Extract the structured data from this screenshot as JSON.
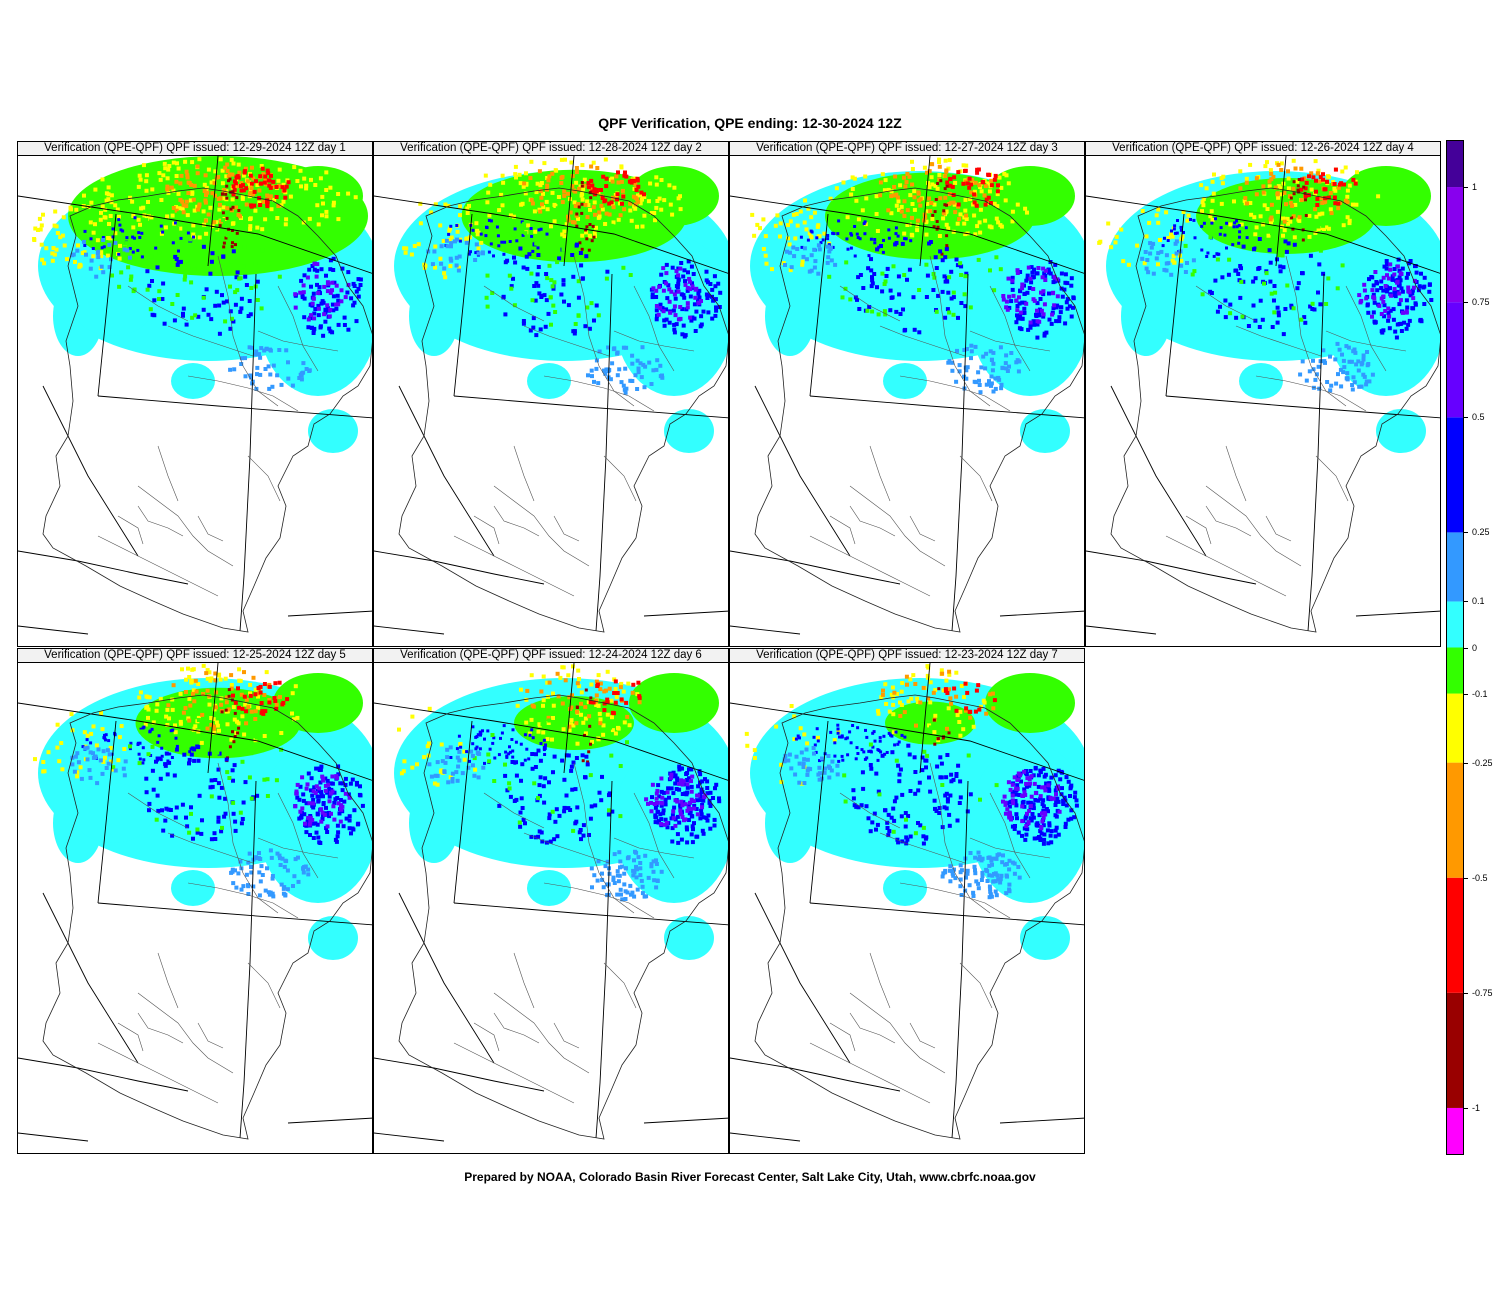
{
  "title": "QPF Verification, QPE ending: 12-30-2024 12Z",
  "footer": "Prepared by NOAA, Colorado Basin River Forecast Center, Salt Lake City, Utah, www.cbrfc.noaa.gov",
  "panels": [
    {
      "label": "Verification (QPE-QPF)  QPF issued: 12-29-2024 12Z day 1",
      "day": 1
    },
    {
      "label": "Verification (QPE-QPF)  QPF issued: 12-28-2024 12Z day 2",
      "day": 2
    },
    {
      "label": "Verification (QPE-QPF)  QPF issued: 12-27-2024 12Z day 3",
      "day": 3
    },
    {
      "label": "Verification (QPE-QPF)  QPF issued: 12-26-2024 12Z day 4",
      "day": 4
    },
    {
      "label": "Verification (QPE-QPF)  QPF issued: 12-25-2024 12Z day 5",
      "day": 5
    },
    {
      "label": "Verification (QPE-QPF)  QPF issued: 12-24-2024 12Z day 6",
      "day": 6
    },
    {
      "label": "Verification (QPE-QPF)  QPF issued: 12-23-2024 12Z day 7",
      "day": 7
    }
  ],
  "legend": {
    "min": -1.1,
    "max": 1.1,
    "bins": [
      {
        "from": -1.1,
        "to": -1,
        "color": "#ff00ff"
      },
      {
        "from": -1,
        "to": -0.75,
        "color": "#990000"
      },
      {
        "from": -0.75,
        "to": -0.5,
        "color": "#ff0000"
      },
      {
        "from": -0.5,
        "to": -0.25,
        "color": "#ff9900"
      },
      {
        "from": -0.25,
        "to": -0.1,
        "color": "#ffff00"
      },
      {
        "from": -0.1,
        "to": 0,
        "color": "#33ff00"
      },
      {
        "from": 0,
        "to": 0.1,
        "color": "#33ffff"
      },
      {
        "from": 0.1,
        "to": 0.25,
        "color": "#3399ff"
      },
      {
        "from": 0.25,
        "to": 0.5,
        "color": "#0000ff"
      },
      {
        "from": 0.5,
        "to": 0.75,
        "color": "#6600ff"
      },
      {
        "from": 0.75,
        "to": 1,
        "color": "#8800ee"
      },
      {
        "from": 1,
        "to": 1.1,
        "color": "#440099"
      }
    ],
    "ticks": [
      {
        "value": 1,
        "label": "1"
      },
      {
        "value": 0.75,
        "label": "0.75"
      },
      {
        "value": 0.5,
        "label": "0.5"
      },
      {
        "value": 0.25,
        "label": "0.25"
      },
      {
        "value": 0.1,
        "label": "0.1"
      },
      {
        "value": 0,
        "label": "0"
      },
      {
        "value": -0.1,
        "label": "-0.1"
      },
      {
        "value": -0.25,
        "label": "-0.25"
      },
      {
        "value": -0.5,
        "label": "-0.5"
      },
      {
        "value": -0.75,
        "label": "-0.75"
      },
      {
        "value": -1,
        "label": "-1"
      }
    ]
  }
}
